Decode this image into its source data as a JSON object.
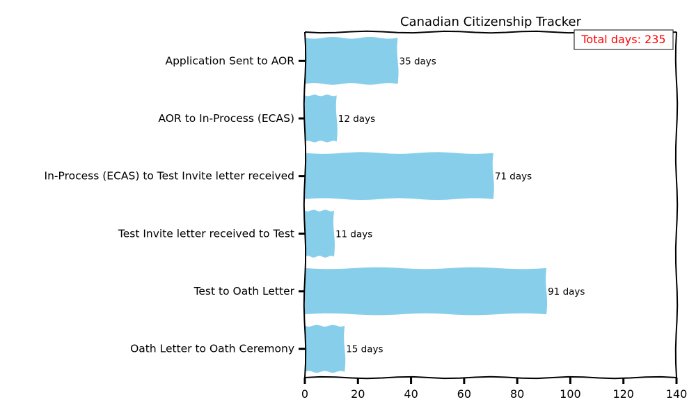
{
  "chart_data": {
    "type": "bar",
    "orientation": "horizontal",
    "title": "Canadian Citizenship Tracker",
    "xlabel": "",
    "ylabel": "",
    "categories": [
      "Application Sent to AOR",
      "AOR to In-Process (ECAS)",
      "In-Process (ECAS) to Test Invite letter received",
      "Test Invite letter received to Test",
      "Test to Oath Letter",
      "Oath Letter to Oath Ceremony"
    ],
    "values": [
      35,
      12,
      71,
      11,
      91,
      15
    ],
    "value_labels": [
      "35 days",
      "12 days",
      "71 days",
      "11 days",
      "91 days",
      "15 days"
    ],
    "xlim": [
      0,
      140
    ],
    "xticks": [
      0,
      20,
      40,
      60,
      80,
      100,
      120,
      140
    ],
    "grid": false,
    "bar_color": "#87CEEB",
    "annotation": {
      "text": "Total days: 235",
      "color": "#ff0000",
      "placement": "top-right"
    }
  }
}
